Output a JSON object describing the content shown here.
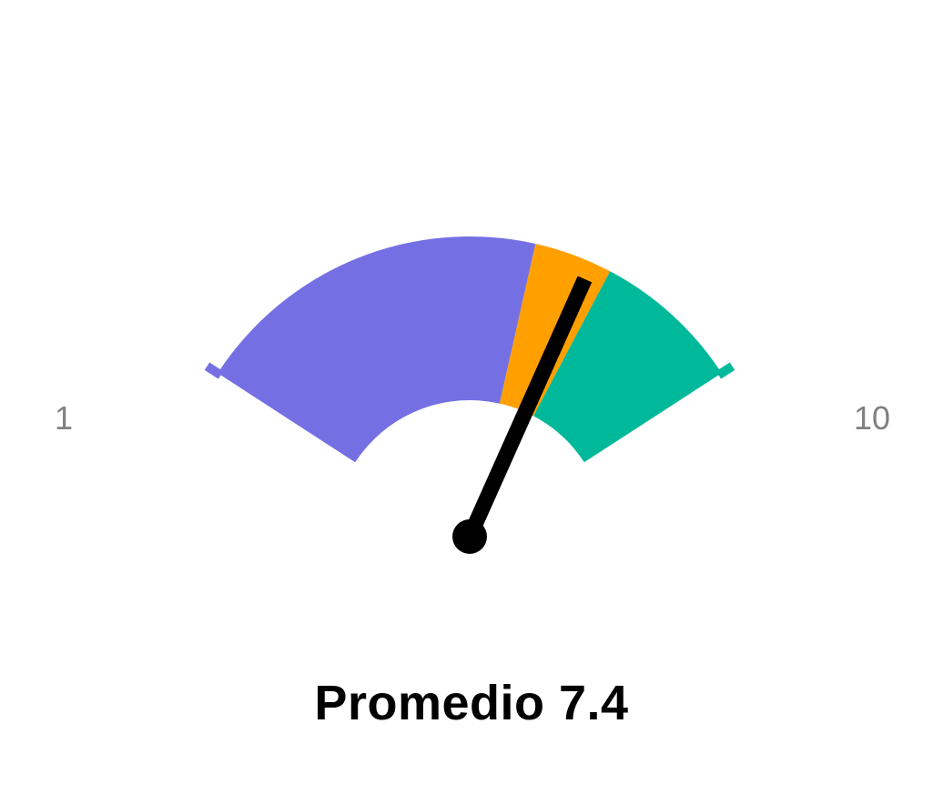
{
  "chart_data": {
    "type": "gauge",
    "min": 1,
    "max": 10,
    "value": 7.4,
    "min_label": "1",
    "max_label": "10",
    "bands": [
      {
        "from": 1,
        "to": 6.5,
        "color": "#7470E3"
      },
      {
        "from": 6.5,
        "to": 7.7,
        "color": "#FFA000"
      },
      {
        "from": 7.7,
        "to": 10,
        "color": "#00B99A"
      }
    ],
    "needle_color": "#000000",
    "caption_label": "Promedio",
    "caption_value": "7.4"
  }
}
